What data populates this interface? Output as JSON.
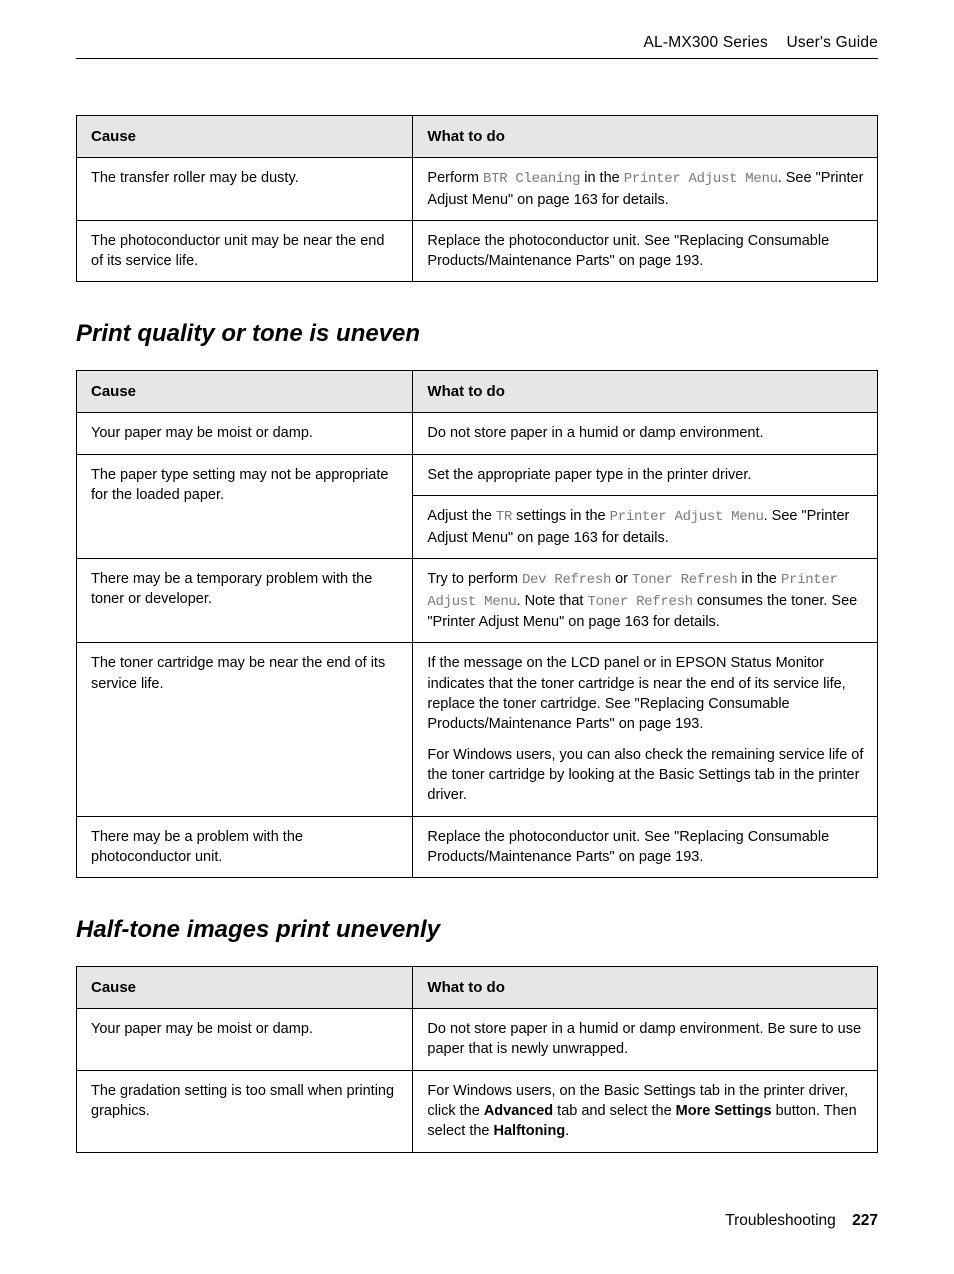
{
  "header": {
    "series": "AL-MX300 Series",
    "title": "User's Guide"
  },
  "tables": [
    {
      "headers": {
        "cause": "Cause",
        "todo": "What to do"
      },
      "rows": [
        {
          "cause": "The transfer roller may be dusty.",
          "todo_html": "Perform <span class='code'>BTR Cleaning</span> in the <span class='code'>Printer Adjust Menu</span>. See \"Printer Adjust Menu\" on page 163 for details."
        },
        {
          "cause": "The photoconductor unit may be near the end of its service life.",
          "todo_html": "Replace the photoconductor unit. See \"Replacing Consumable Products/Maintenance Parts\" on page 193."
        }
      ]
    },
    {
      "heading": "Print quality or tone is uneven",
      "headers": {
        "cause": "Cause",
        "todo": "What to do"
      },
      "rows": [
        {
          "cause": "Your paper may be moist or damp.",
          "todo_html": "Do not store paper in a humid or damp environment."
        },
        {
          "cause": "The paper type setting may not be appropriate for the loaded paper.",
          "cause_rowspan": 2,
          "todo_html": "Set the appropriate paper type in the printer driver."
        },
        {
          "todo_html": "Adjust the <span class='code'>TR</span> settings in the <span class='code'>Printer Adjust Menu</span>. See \"Printer Adjust Menu\" on page 163 for details."
        },
        {
          "cause": "There may be a temporary problem with the toner or developer.",
          "todo_html": "Try to perform <span class='code'>Dev Refresh</span> or <span class='code'>Toner Refresh</span> in the <span class='code'>Printer Adjust Menu</span>. Note that <span class='code'>Toner Refresh</span> consumes the toner. See \"Printer Adjust Menu\" on page 163 for details."
        },
        {
          "cause": "The toner cartridge may be near the end of its service life.",
          "todo_html": "<div class='para-block'>If the message on the LCD panel or in EPSON Status Monitor indicates that the toner cartridge is near the end of its service life, replace the toner cartridge. See \"Replacing Consumable Products/Maintenance Parts\" on page 193.</div><div class='para-block'>For Windows users, you can also check the remaining service life of the toner cartridge by looking at the Basic Settings tab in the printer driver.</div>"
        },
        {
          "cause": "There may be a problem with the photoconductor unit.",
          "todo_html": "Replace the photoconductor unit. See \"Replacing Consumable Products/Maintenance Parts\" on page 193."
        }
      ]
    },
    {
      "heading": "Half-tone images print unevenly",
      "headers": {
        "cause": "Cause",
        "todo": "What to do"
      },
      "rows": [
        {
          "cause": "Your paper may be moist or damp.",
          "todo_html": "Do not store paper in a humid or damp environment. Be sure to use paper that is newly unwrapped."
        },
        {
          "cause": "The gradation setting is too small when printing graphics.",
          "todo_html": "For Windows users, on the Basic Settings tab in the printer driver, click the <strong>Advanced</strong> tab and select the <strong>More Settings</strong> button. Then select the <strong>Halftoning</strong>."
        }
      ]
    }
  ],
  "footer": {
    "section": "Troubleshooting",
    "page": "227"
  }
}
